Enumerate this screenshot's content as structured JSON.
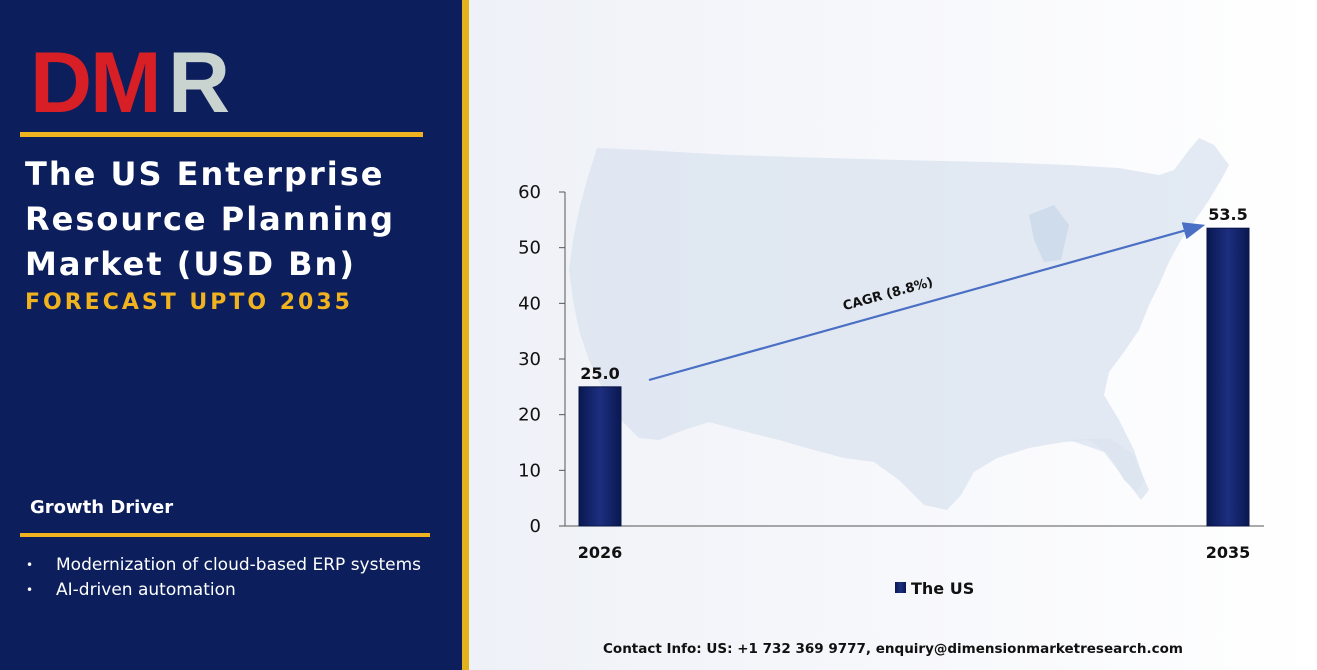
{
  "brand": {
    "logo_text": "DMR",
    "logo_colors": {
      "D": "#d81f26",
      "M": "#d81f26",
      "R": "#c9d3cf"
    }
  },
  "left_panel": {
    "title_lines": [
      "The US Enterprise",
      "Resource Planning",
      "Market (USD Bn)"
    ],
    "subtitle": "FORECAST UPTO 2035",
    "growth_driver_heading": "Growth Driver",
    "growth_drivers": [
      "Modernization of cloud-based ERP systems",
      "AI-driven automation"
    ],
    "bullet_glyph": "•"
  },
  "colors": {
    "panel_bg": "#0c1f5c",
    "accent_gold": "#f0b21e",
    "bar_fill": "#0f1f66",
    "arrow": "#4a6fc4",
    "map_fill": "#d9e3ef"
  },
  "chart_data": {
    "type": "bar",
    "categories": [
      "2026",
      "2035"
    ],
    "series": [
      {
        "name": "The US",
        "values": [
          25.0,
          53.5
        ]
      }
    ],
    "data_labels": [
      "25.0",
      "53.5"
    ],
    "ylim": [
      0,
      60
    ],
    "yticks": [
      0,
      10,
      20,
      30,
      40,
      50,
      60
    ],
    "annotation": "CAGR (8.8%)",
    "legend_position": "bottom",
    "grid": false,
    "background": "map of the United States"
  },
  "footer": {
    "contact": "Contact Info: US: +1 732 369 9777, enquiry@dimensionmarketresearch.com"
  }
}
